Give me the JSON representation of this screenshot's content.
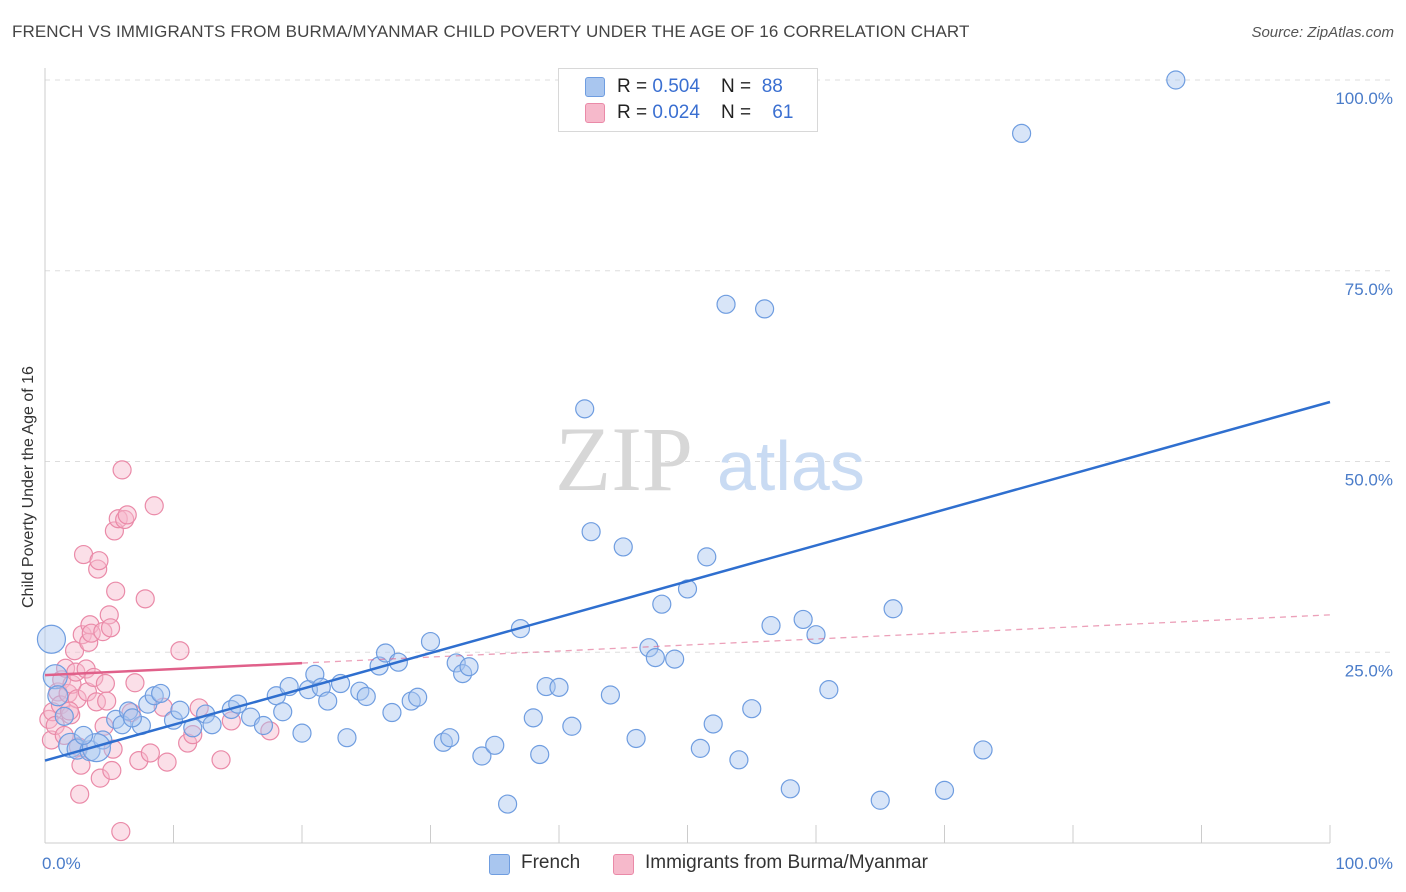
{
  "header": {
    "title": "FRENCH VS IMMIGRANTS FROM BURMA/MYANMAR CHILD POVERTY UNDER THE AGE OF 16 CORRELATION CHART",
    "source": "Source: ZipAtlas.com"
  },
  "watermark": {
    "zip": "ZIP",
    "atlas": "atlas"
  },
  "legend": {
    "french": {
      "r_label": "R = ",
      "r_value": "0.504",
      "n_label": "N = ",
      "n_value": "88"
    },
    "burma": {
      "r_label": "R = ",
      "r_value": "0.024",
      "n_label": "N = ",
      "n_value": "61"
    }
  },
  "bottom_legend": {
    "french": "French",
    "burma": "Immigrants from Burma/Myanmar"
  },
  "colors": {
    "french_fill": "#a9c6ef",
    "french_stroke": "#6f9de0",
    "french_line": "#2f6fcf",
    "burma_fill": "#f6b9cb",
    "burma_stroke": "#ea8aa8",
    "burma_line": "#e0608a",
    "tick_text": "#4a7cc9",
    "grid": "#dddddd"
  },
  "chart_data": {
    "type": "scatter",
    "title": "FRENCH VS IMMIGRANTS FROM BURMA/MYANMAR CHILD POVERTY UNDER THE AGE OF 16 CORRELATION CHART",
    "xlabel": "",
    "ylabel": "Child Poverty Under the Age of 16",
    "xlim": [
      0,
      100
    ],
    "ylim": [
      0,
      100
    ],
    "x_tick_labels": [
      "0.0%",
      "100.0%"
    ],
    "y_tick_labels": [
      "25.0%",
      "50.0%",
      "75.0%",
      "100.0%"
    ],
    "y_ticks": [
      25,
      50,
      75,
      100
    ],
    "grid": true,
    "legend_position": "top-center",
    "series": [
      {
        "name": "French",
        "color": "#6f9de0",
        "r": 0.504,
        "n": 88,
        "trend": {
          "x": [
            0,
            100
          ],
          "y": [
            10.8,
            57.8
          ]
        },
        "points": [
          [
            0.5,
            26.7,
            14
          ],
          [
            0.8,
            21.8,
            12
          ],
          [
            1,
            19.3,
            10
          ],
          [
            1.5,
            16.6,
            9
          ],
          [
            2,
            12.8,
            12
          ],
          [
            2.5,
            12.3,
            10
          ],
          [
            3.5,
            12.1,
            10
          ],
          [
            4.5,
            13.5,
            9
          ],
          [
            5.5,
            16.2,
            9
          ],
          [
            6,
            15.5,
            9
          ],
          [
            6.5,
            17.3,
            9
          ],
          [
            7.5,
            15.4,
            9
          ],
          [
            8,
            18.2,
            9
          ],
          [
            8.5,
            19.3,
            9
          ],
          [
            9,
            19.6,
            9
          ],
          [
            10,
            16.1,
            9
          ],
          [
            11.5,
            15.1,
            9
          ],
          [
            12.5,
            16.9,
            9
          ],
          [
            13,
            15.5,
            9
          ],
          [
            14.5,
            17.5,
            9
          ],
          [
            15,
            18.2,
            9
          ],
          [
            16,
            16.5,
            9
          ],
          [
            17,
            15.4,
            9
          ],
          [
            18,
            19.3,
            9
          ],
          [
            18.5,
            17.2,
            9
          ],
          [
            19,
            20.5,
            9
          ],
          [
            20,
            14.4,
            9
          ],
          [
            20.5,
            20.1,
            9
          ],
          [
            21,
            22.1,
            9
          ],
          [
            21.5,
            20.4,
            9
          ],
          [
            22,
            18.6,
            9
          ],
          [
            23,
            20.9,
            9
          ],
          [
            23.5,
            13.8,
            9
          ],
          [
            24.5,
            19.9,
            9
          ],
          [
            25,
            19.2,
            9
          ],
          [
            26,
            23.2,
            9
          ],
          [
            26.5,
            24.9,
            9
          ],
          [
            27,
            17.1,
            9
          ],
          [
            27.5,
            23.7,
            9
          ],
          [
            28.5,
            18.6,
            9
          ],
          [
            29,
            19.1,
            9
          ],
          [
            30,
            26.4,
            9
          ],
          [
            31,
            13.2,
            9
          ],
          [
            31.5,
            13.8,
            9
          ],
          [
            32,
            23.6,
            9
          ],
          [
            32.5,
            22.2,
            9
          ],
          [
            33,
            23.1,
            9
          ],
          [
            34,
            11.4,
            9
          ],
          [
            35,
            12.8,
            9
          ],
          [
            36,
            5.1,
            9
          ],
          [
            37,
            28.1,
            9
          ],
          [
            38,
            16.4,
            9
          ],
          [
            38.5,
            11.6,
            9
          ],
          [
            39,
            20.5,
            9
          ],
          [
            40,
            20.4,
            9
          ],
          [
            41,
            15.3,
            9
          ],
          [
            42,
            56.9,
            9
          ],
          [
            42.5,
            40.8,
            9
          ],
          [
            44,
            19.4,
            9
          ],
          [
            45,
            38.8,
            9
          ],
          [
            46,
            13.7,
            9
          ],
          [
            47,
            25.6,
            9
          ],
          [
            47.5,
            24.3,
            9
          ],
          [
            48,
            31.3,
            9
          ],
          [
            49,
            24.1,
            9
          ],
          [
            50,
            33.3,
            9
          ],
          [
            51,
            12.4,
            9
          ],
          [
            51.5,
            37.5,
            9
          ],
          [
            52,
            15.6,
            9
          ],
          [
            53,
            70.6,
            9
          ],
          [
            54,
            10.9,
            9
          ],
          [
            55,
            17.6,
            9
          ],
          [
            56,
            70.0,
            9
          ],
          [
            56.5,
            28.5,
            9
          ],
          [
            58,
            7.1,
            9
          ],
          [
            59,
            29.3,
            9
          ],
          [
            60,
            27.3,
            9
          ],
          [
            61,
            20.1,
            9
          ],
          [
            65,
            5.6,
            9
          ],
          [
            66,
            30.7,
            9
          ],
          [
            70,
            6.9,
            9
          ],
          [
            73,
            12.2,
            9
          ],
          [
            76,
            93.0,
            9
          ],
          [
            88,
            100.0,
            9
          ],
          [
            10.5,
            17.4,
            9
          ],
          [
            4,
            12.5,
            14
          ],
          [
            3,
            14.1,
            9
          ],
          [
            6.8,
            16.4,
            9
          ]
        ]
      },
      {
        "name": "Immigrants from Burma/Myanmar",
        "color": "#ea8aa8",
        "r": 0.024,
        "n": 61,
        "trend": {
          "x": [
            0,
            100
          ],
          "y": [
            22.0,
            29.9
          ]
        },
        "trend_solid_until_x": 20,
        "points": [
          [
            0.3,
            16.2,
            9
          ],
          [
            0.5,
            13.5,
            9
          ],
          [
            0.6,
            17.2,
            9
          ],
          [
            0.8,
            15.4,
            9
          ],
          [
            1,
            19.8,
            9
          ],
          [
            1.2,
            18.1,
            9
          ],
          [
            1.3,
            21.4,
            9
          ],
          [
            1.5,
            14.1,
            9
          ],
          [
            1.6,
            22.9,
            9
          ],
          [
            1.8,
            19.6,
            9
          ],
          [
            2,
            16.8,
            9
          ],
          [
            2.1,
            20.8,
            9
          ],
          [
            2.3,
            25.2,
            9
          ],
          [
            2.4,
            22.4,
            9
          ],
          [
            2.5,
            18.9,
            9
          ],
          [
            2.6,
            12.6,
            9
          ],
          [
            2.7,
            6.4,
            9
          ],
          [
            2.8,
            10.2,
            9
          ],
          [
            2.9,
            27.3,
            9
          ],
          [
            3,
            37.8,
            9
          ],
          [
            3.2,
            22.8,
            9
          ],
          [
            3.3,
            19.8,
            9
          ],
          [
            3.4,
            26.3,
            9
          ],
          [
            3.5,
            28.6,
            9
          ],
          [
            3.6,
            27.5,
            9
          ],
          [
            3.8,
            21.7,
            9
          ],
          [
            4,
            18.5,
            9
          ],
          [
            4.1,
            35.9,
            9
          ],
          [
            4.2,
            37.0,
            9
          ],
          [
            4.3,
            8.5,
            9
          ],
          [
            4.5,
            27.7,
            9
          ],
          [
            4.6,
            15.3,
            9
          ],
          [
            4.7,
            20.9,
            9
          ],
          [
            4.8,
            18.6,
            9
          ],
          [
            5,
            29.9,
            9
          ],
          [
            5.1,
            28.2,
            9
          ],
          [
            5.2,
            9.5,
            9
          ],
          [
            5.3,
            12.3,
            9
          ],
          [
            5.4,
            40.9,
            9
          ],
          [
            5.5,
            33.0,
            9
          ],
          [
            5.7,
            42.5,
            9
          ],
          [
            5.9,
            1.5,
            9
          ],
          [
            6,
            48.9,
            9
          ],
          [
            6.2,
            42.4,
            9
          ],
          [
            6.4,
            43.0,
            9
          ],
          [
            6.7,
            17.1,
            9
          ],
          [
            7,
            21.0,
            9
          ],
          [
            7.3,
            10.8,
            9
          ],
          [
            7.8,
            32.0,
            9
          ],
          [
            8.2,
            11.8,
            9
          ],
          [
            8.5,
            44.2,
            9
          ],
          [
            9.2,
            17.8,
            9
          ],
          [
            9.5,
            10.6,
            9
          ],
          [
            10.5,
            25.2,
            9
          ],
          [
            11.1,
            13.1,
            9
          ],
          [
            11.5,
            14.2,
            9
          ],
          [
            12.0,
            17.7,
            9
          ],
          [
            13.7,
            10.9,
            9
          ],
          [
            14.5,
            16.0,
            9
          ],
          [
            17.5,
            14.7,
            9
          ],
          [
            1.9,
            17.3,
            9
          ]
        ]
      }
    ]
  }
}
